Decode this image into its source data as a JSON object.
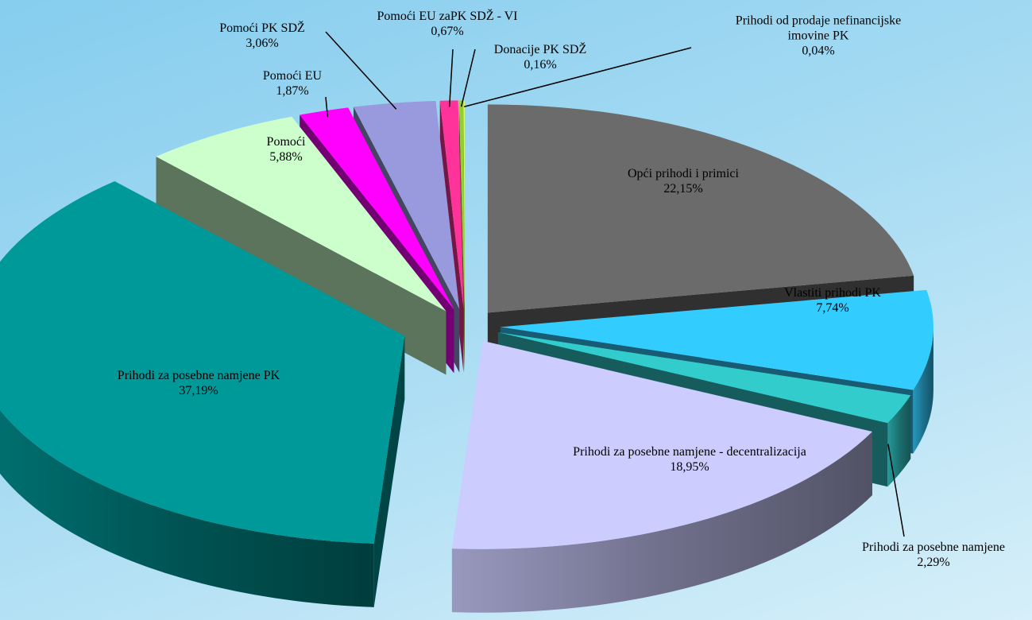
{
  "chart_data": {
    "type": "pie",
    "categories": [
      "Opći prihodi i primici",
      "Vlastiti prihodi PK",
      "Prihodi za posebne namjene",
      "Prihodi za posebne namjene - decentralizacija",
      "Prihodi za posebne namjene PK",
      "Pomoći",
      "Pomoći EU",
      "Pomoći PK SDŽ",
      "Pomoći EU zaPK SDŽ - VI",
      "Donacije PK SDŽ",
      "Prihodi od prodaje nefinancijske imovine PK"
    ],
    "values": [
      22.15,
      7.74,
      2.29,
      18.95,
      37.19,
      5.88,
      1.87,
      3.06,
      0.67,
      0.16,
      0.04
    ],
    "value_labels": [
      "22,15%",
      "7,74%",
      "2,29%",
      "18,95%",
      "37,19%",
      "5,88%",
      "1,87%",
      "3,06%",
      "0,67%",
      "0,16%",
      "0,04%"
    ],
    "colors": [
      "#6b6b6b",
      "#33ccff",
      "#33cccc",
      "#ccccff",
      "#009999",
      "#ccffcc",
      "#ff00ff",
      "#9999dd",
      "#ff3399",
      "#99cc33",
      "#ccff66"
    ]
  }
}
